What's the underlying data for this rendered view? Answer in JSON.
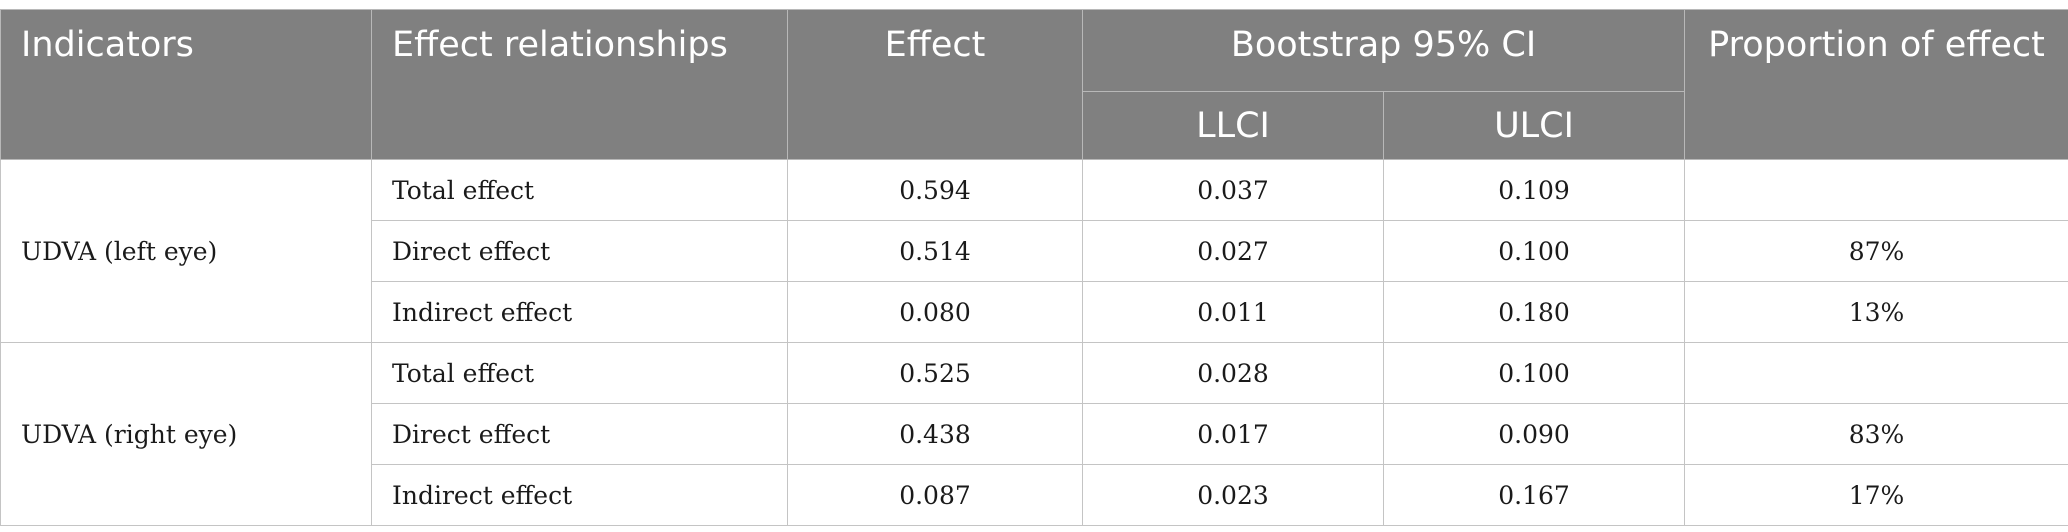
{
  "headers": {
    "indicators": "Indicators",
    "effect_relationships": "Effect relationships",
    "effect": "Effect",
    "bootstrap": "Bootstrap 95% CI",
    "llci": "LLCI",
    "ulci": "ULCI",
    "proportion": "Proportion of effect"
  },
  "groups": [
    {
      "indicator": "UDVA (left eye)",
      "rows": [
        {
          "relationship": "Total effect",
          "effect": "0.594",
          "llci": "0.037",
          "ulci": "0.109",
          "proportion": ""
        },
        {
          "relationship": "Direct effect",
          "effect": "0.514",
          "llci": "0.027",
          "ulci": "0.100",
          "proportion": "87%"
        },
        {
          "relationship": "Indirect effect",
          "effect": "0.080",
          "llci": "0.011",
          "ulci": "0.180",
          "proportion": "13%"
        }
      ]
    },
    {
      "indicator": "UDVA (right eye)",
      "rows": [
        {
          "relationship": "Total effect",
          "effect": "0.525",
          "llci": "0.028",
          "ulci": "0.100",
          "proportion": ""
        },
        {
          "relationship": "Direct effect",
          "effect": "0.438",
          "llci": "0.017",
          "ulci": "0.090",
          "proportion": "83%"
        },
        {
          "relationship": "Indirect effect",
          "effect": "0.087",
          "llci": "0.023",
          "ulci": "0.167",
          "proportion": "17%"
        }
      ]
    }
  ]
}
